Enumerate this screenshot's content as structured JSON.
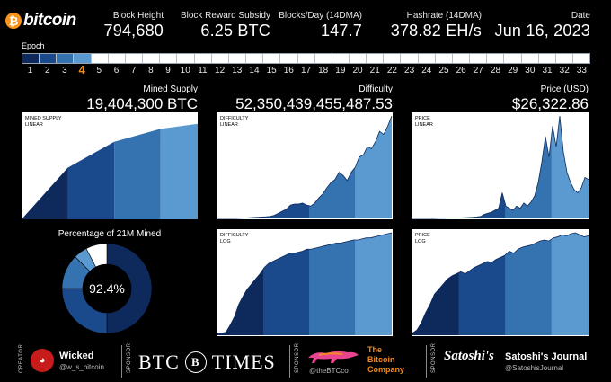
{
  "header": {
    "logo_coin": "₿",
    "logo_text": "bitcoin",
    "stats": [
      {
        "label": "Block Height",
        "value": "794,680"
      },
      {
        "label": "Block Reward Subsidy",
        "value": "6.25 BTC"
      },
      {
        "label": "Blocks/Day (14DMA)",
        "value": "147.7"
      },
      {
        "label": "Hashrate (14DMA)",
        "value": "378.82 EH/s"
      },
      {
        "label": "Date",
        "value": "Jun 16, 2023"
      }
    ]
  },
  "epoch": {
    "label": "Epoch",
    "current": 4,
    "total": 33,
    "fill_colors": [
      "#0e2a5c",
      "#1a4a8c",
      "#3572b0",
      "#5b9ad0"
    ],
    "empty_color": "#ffffff"
  },
  "sections": {
    "mined_supply": {
      "label": "Mined Supply",
      "value": "19,404,300 BTC"
    },
    "difficulty": {
      "label": "Difficulty",
      "value": "52,350,439,455,487.53"
    },
    "price": {
      "label": "Price (USD)",
      "value": "$26,322.86"
    }
  },
  "panels": {
    "supply_linear": {
      "tag_line1": "MINED SUPPLY",
      "tag_line2": "LINEAR"
    },
    "difficulty_linear": {
      "tag_line1": "DIFFICULTY",
      "tag_line2": "LINEAR"
    },
    "difficulty_log": {
      "tag_line1": "DIFFICULTY",
      "tag_line2": "LOG"
    },
    "price_linear": {
      "tag_line1": "PRICE",
      "tag_line2": "LINEAR"
    },
    "price_log": {
      "tag_line1": "PRICE",
      "tag_line2": "LOG"
    }
  },
  "donut": {
    "title": "Percentage of 21M Mined",
    "center_text": "92.4%"
  },
  "footer": {
    "creator_label": "CREATOR",
    "creator_name": "Wicked",
    "creator_handle": "@w_s_bitcoin",
    "sponsor_label": "SPONSOR",
    "sponsor1_left": "BTC",
    "sponsor1_seal": "B",
    "sponsor1_right": "TIMES",
    "sponsor2_handle": "@theBTCco",
    "sponsor2_name_line1": "The",
    "sponsor2_name_line2": "Bitcoin",
    "sponsor2_name_line3": "Company",
    "sponsor3_logo": "Satoshi's",
    "sponsor3_name": "Satoshi's Journal",
    "sponsor3_handle": "@SatoshisJournal"
  },
  "colors": {
    "epoch1": "#0e2a5c",
    "epoch2": "#1a4a8c",
    "epoch3": "#3572b0",
    "epoch4": "#5b9ad0",
    "accent": "#f28c1e"
  },
  "chart_data": [
    {
      "type": "area",
      "name": "mined_supply_linear",
      "epochs": [
        1,
        2,
        3,
        4
      ],
      "x_epoch_boundaries": [
        0,
        0.263,
        0.526,
        0.789,
        1.0
      ],
      "y": [
        0,
        10.5,
        15.75,
        18.375,
        19.4043
      ],
      "ylim": [
        0,
        21
      ]
    },
    {
      "type": "donut",
      "name": "percentage_of_21m_mined",
      "values": [
        50,
        25,
        12.5,
        4.9
      ],
      "remaining": 7.6,
      "unit": "percent"
    },
    {
      "type": "area",
      "name": "difficulty_linear",
      "epoch_boundaries": [
        0,
        0.263,
        0.526,
        0.789,
        1.0
      ],
      "values": [
        0,
        0,
        0,
        0,
        0,
        0.001,
        0.002,
        0.004,
        0.008,
        0.01,
        0.012,
        0.014,
        0.016,
        0.02,
        0.03,
        0.05,
        0.07,
        0.09,
        0.13,
        0.14,
        0.14,
        0.15,
        0.13,
        0.12,
        0.15,
        0.2,
        0.24,
        0.3,
        0.35,
        0.38,
        0.45,
        0.42,
        0.37,
        0.45,
        0.5,
        0.6,
        0.62,
        0.7,
        0.68,
        0.75,
        0.85,
        0.82,
        0.9,
        1.0
      ],
      "ylim": [
        0,
        1
      ]
    },
    {
      "type": "area",
      "name": "difficulty_log",
      "epoch_boundaries": [
        0,
        0.263,
        0.526,
        0.789,
        1.0
      ],
      "values": [
        0.02,
        0.02,
        0.03,
        0.1,
        0.18,
        0.3,
        0.38,
        0.45,
        0.5,
        0.55,
        0.6,
        0.66,
        0.7,
        0.72,
        0.74,
        0.76,
        0.78,
        0.8,
        0.8,
        0.81,
        0.82,
        0.84,
        0.84,
        0.85,
        0.86,
        0.87,
        0.88,
        0.89,
        0.9,
        0.9,
        0.91,
        0.92,
        0.93,
        0.93,
        0.94,
        0.95,
        0.95,
        0.96,
        0.97,
        0.98,
        0.99,
        1.0
      ],
      "ylim": [
        0,
        1
      ]
    },
    {
      "type": "area",
      "name": "price_linear",
      "epoch_boundaries": [
        0,
        0.263,
        0.526,
        0.789,
        1.0
      ],
      "values": [
        0,
        0,
        0,
        0,
        0,
        0,
        0,
        0.001,
        0.002,
        0.002,
        0.003,
        0.003,
        0.004,
        0.005,
        0.006,
        0.008,
        0.01,
        0.012,
        0.015,
        0.02,
        0.04,
        0.05,
        0.06,
        0.08,
        0.1,
        0.25,
        0.12,
        0.1,
        0.08,
        0.12,
        0.1,
        0.15,
        0.12,
        0.16,
        0.22,
        0.35,
        0.55,
        0.8,
        0.6,
        0.9,
        0.7,
        1.0,
        0.65,
        0.45,
        0.35,
        0.28,
        0.25,
        0.3,
        0.4,
        0.38
      ],
      "ylim": [
        0,
        1
      ]
    },
    {
      "type": "area",
      "name": "price_log",
      "epoch_boundaries": [
        0,
        0.263,
        0.526,
        0.789,
        1.0
      ],
      "values": [
        0.02,
        0.05,
        0.12,
        0.22,
        0.3,
        0.4,
        0.45,
        0.5,
        0.55,
        0.58,
        0.6,
        0.62,
        0.6,
        0.63,
        0.66,
        0.68,
        0.7,
        0.72,
        0.71,
        0.74,
        0.76,
        0.78,
        0.82,
        0.8,
        0.84,
        0.86,
        0.87,
        0.88,
        0.9,
        0.92,
        0.93,
        0.92,
        0.95,
        0.96,
        0.98,
        0.97,
        0.99,
        1.0,
        0.98,
        0.96,
        0.97
      ],
      "ylim": [
        0,
        1
      ]
    }
  ]
}
